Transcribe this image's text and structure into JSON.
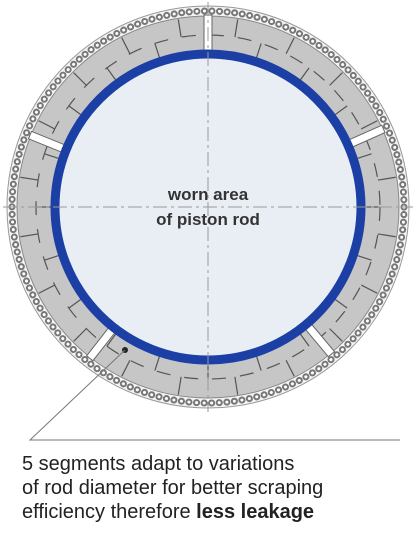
{
  "center_label": {
    "line1": "worn area",
    "line2": "of piston rod"
  },
  "caption": {
    "line1": "5 segments adapt to variations",
    "line2": "of rod diameter for better scraping",
    "line3": "efficiency therefore ",
    "line3_bold": "less leakage"
  }
}
